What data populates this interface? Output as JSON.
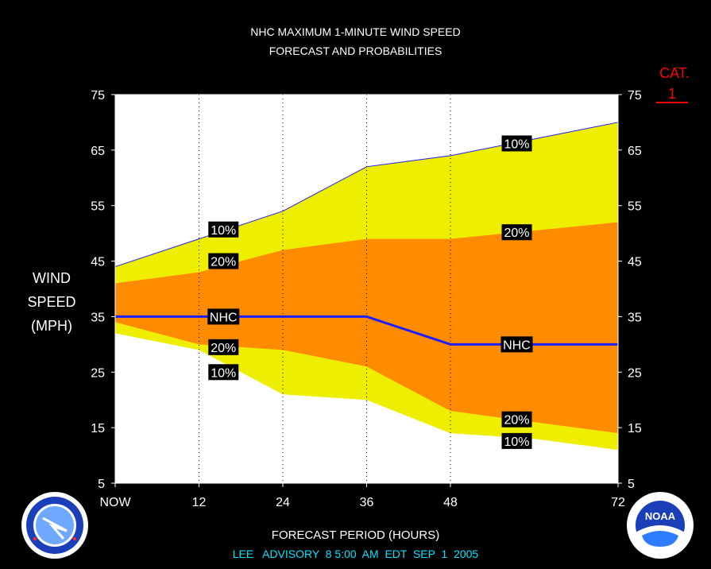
{
  "header": {
    "title_line1": "NHC MAXIMUM 1-MINUTE WIND SPEED",
    "title_line2": "FORECAST AND PROBABILITIES"
  },
  "category_marker": {
    "label": "CAT.",
    "value": "1",
    "color": "#ff0000"
  },
  "y_axis_title": [
    "WIND",
    "SPEED",
    "(MPH)"
  ],
  "x_axis_title": "FORECAST PERIOD (HOURS)",
  "advisory": "LEE   ADVISORY  8 5:00  AM  EDT  SEP  1  2005",
  "logos": {
    "left": "nws-logo-icon",
    "right": "noaa-logo-icon",
    "noaa_text": "NOAA"
  },
  "colors": {
    "background": "#000000",
    "plot_bg": "#ffffff",
    "band_10": "#eeee00",
    "band_20": "#ff8c00",
    "nhc_line": "#1e1eff",
    "advisory_text": "#00e5ff",
    "cat_text": "#ff0000"
  },
  "chart_data": {
    "type": "area",
    "x_ticks": [
      0,
      12,
      24,
      36,
      48,
      72
    ],
    "x_tick_labels": [
      "NOW",
      "12",
      "24",
      "36",
      "48",
      "72"
    ],
    "y_ticks": [
      5,
      15,
      25,
      35,
      45,
      55,
      65,
      75
    ],
    "ylim": [
      5,
      75
    ],
    "xlim": [
      0,
      72
    ],
    "vertical_gridlines_at": [
      12,
      24,
      36,
      48
    ],
    "series": [
      {
        "name": "10%",
        "x": [
          0,
          12,
          24,
          36,
          48,
          60,
          72
        ],
        "values": [
          44,
          49,
          54,
          62,
          64,
          67,
          70
        ]
      },
      {
        "name": "20%",
        "x": [
          0,
          12,
          24,
          36,
          48,
          60,
          72
        ],
        "values": [
          41,
          43,
          47,
          49,
          49,
          50.5,
          52
        ]
      },
      {
        "name": "NHC",
        "x": [
          0,
          12,
          24,
          36,
          48,
          60,
          72
        ],
        "values": [
          35,
          35,
          35,
          35,
          30,
          30,
          30
        ]
      },
      {
        "name": "20%",
        "x": [
          0,
          12,
          24,
          36,
          48,
          60,
          72
        ],
        "values": [
          34,
          30,
          29,
          26,
          18,
          16,
          14
        ]
      },
      {
        "name": "10%",
        "x": [
          0,
          12,
          24,
          36,
          48,
          60,
          72
        ],
        "values": [
          32,
          29,
          21,
          20,
          14,
          13,
          11
        ]
      }
    ],
    "annotations": [
      {
        "text": "10%",
        "x": 15.5,
        "y": 50.7
      },
      {
        "text": "20%",
        "x": 15.5,
        "y": 45
      },
      {
        "text": "NHC",
        "x": 15.5,
        "y": 35
      },
      {
        "text": "20%",
        "x": 15.5,
        "y": 29.5
      },
      {
        "text": "10%",
        "x": 15.5,
        "y": 25
      },
      {
        "text": "10%",
        "x": 57.5,
        "y": 66.2
      },
      {
        "text": "20%",
        "x": 57.5,
        "y": 50.2
      },
      {
        "text": "NHC",
        "x": 57.5,
        "y": 30
      },
      {
        "text": "20%",
        "x": 57.5,
        "y": 16.5
      },
      {
        "text": "10%",
        "x": 57.5,
        "y": 12.6
      }
    ]
  }
}
